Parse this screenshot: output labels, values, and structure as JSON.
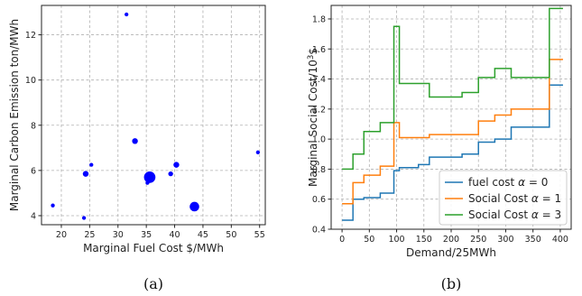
{
  "chart_data": [
    {
      "type": "scatter",
      "caption": "(a)",
      "xlabel": "Marginal Fuel Cost $/MWh",
      "ylabel": "Marginal Carbon Emission ton/MWh",
      "xlim": [
        16.5,
        56
      ],
      "ylim": [
        3.6,
        13.3
      ],
      "xticks": [
        20,
        25,
        30,
        35,
        40,
        45,
        50,
        55
      ],
      "yticks": [
        4,
        6,
        8,
        10,
        12
      ],
      "grid": true,
      "color": "#0000ff",
      "points": [
        {
          "x": 18.5,
          "y": 4.45,
          "size": 1
        },
        {
          "x": 24.0,
          "y": 3.9,
          "size": 1
        },
        {
          "x": 24.3,
          "y": 5.85,
          "size": 2
        },
        {
          "x": 25.3,
          "y": 6.25,
          "size": 1
        },
        {
          "x": 31.5,
          "y": 12.9,
          "size": 1
        },
        {
          "x": 33.0,
          "y": 7.3,
          "size": 2
        },
        {
          "x": 35.2,
          "y": 5.45,
          "size": 1
        },
        {
          "x": 35.6,
          "y": 5.7,
          "size": 5
        },
        {
          "x": 39.3,
          "y": 5.85,
          "size": 1.5
        },
        {
          "x": 40.3,
          "y": 6.25,
          "size": 2
        },
        {
          "x": 43.5,
          "y": 4.4,
          "size": 4
        },
        {
          "x": 54.7,
          "y": 6.8,
          "size": 1
        }
      ]
    },
    {
      "type": "line",
      "step": true,
      "caption": "(b)",
      "xlabel": "Demand/25MWh",
      "ylabel": "Marginal Social Cost/10",
      "ylabel_sup": "3",
      "ylabel_suffix": "$",
      "xlim": [
        -20,
        420
      ],
      "ylim": [
        0.4,
        1.89
      ],
      "xticks": [
        0,
        50,
        100,
        150,
        200,
        250,
        300,
        350,
        400
      ],
      "yticks": [
        0.4,
        0.6,
        0.8,
        1.0,
        1.2,
        1.4,
        1.6,
        1.8
      ],
      "grid": true,
      "legend_position": "lower-right",
      "x": [
        0,
        20,
        40,
        70,
        95,
        105,
        140,
        160,
        220,
        250,
        280,
        310,
        380,
        405
      ],
      "series": [
        {
          "name": "fuel cost",
          "alpha": "0",
          "color": "#1f77b4",
          "values": [
            0.46,
            0.6,
            0.61,
            0.64,
            0.79,
            0.81,
            0.83,
            0.88,
            0.9,
            0.98,
            1.0,
            1.08,
            1.36,
            1.36
          ]
        },
        {
          "name": "Social Cost",
          "alpha": "1",
          "color": "#ff7f0e",
          "values": [
            0.57,
            0.71,
            0.76,
            0.82,
            1.11,
            1.01,
            1.01,
            1.03,
            1.03,
            1.12,
            1.16,
            1.2,
            1.53,
            1.53
          ]
        },
        {
          "name": "Social Cost",
          "alpha": "3",
          "color": "#2ca02c",
          "values": [
            0.8,
            0.9,
            1.05,
            1.11,
            1.75,
            1.37,
            1.37,
            1.28,
            1.31,
            1.41,
            1.47,
            1.41,
            1.87,
            1.87
          ]
        }
      ]
    }
  ]
}
